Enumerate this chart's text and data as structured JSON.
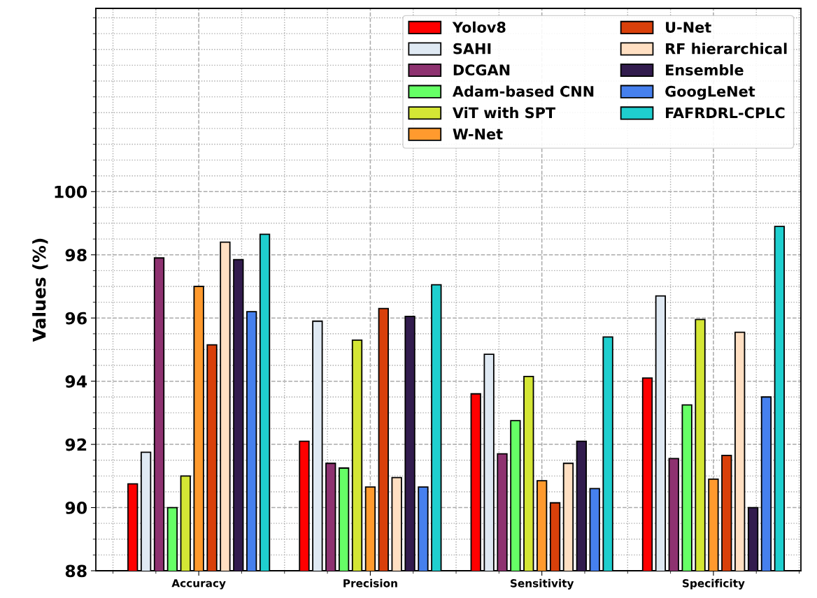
{
  "chart_data": {
    "type": "bar",
    "ylabel": "Values (%)",
    "categories": [
      "Accuracy",
      "Precision",
      "Sensitivity",
      "Specificity"
    ],
    "series": [
      {
        "name": "Yolov8",
        "color": "#ff0000",
        "values": [
          90.75,
          92.1,
          93.6,
          94.1
        ]
      },
      {
        "name": "SAHI",
        "color": "#dfe9f3",
        "values": [
          91.75,
          95.9,
          94.85,
          96.7
        ]
      },
      {
        "name": "DCGAN",
        "color": "#8e3270",
        "values": [
          97.9,
          91.4,
          91.7,
          91.55
        ]
      },
      {
        "name": "Adam-based CNN",
        "color": "#66ff66",
        "values": [
          90.0,
          91.25,
          92.75,
          93.25
        ]
      },
      {
        "name": "ViT with SPT",
        "color": "#d4e635",
        "values": [
          91.0,
          95.3,
          94.15,
          95.95
        ]
      },
      {
        "name": "W-Net",
        "color": "#ff9a2e",
        "values": [
          97.0,
          90.65,
          90.85,
          90.9
        ]
      },
      {
        "name": "U-Net",
        "color": "#d9400a",
        "values": [
          95.15,
          96.3,
          90.15,
          91.65
        ]
      },
      {
        "name": "RF hierarchical",
        "color": "#ffdfc2",
        "values": [
          98.4,
          90.95,
          91.4,
          95.55
        ]
      },
      {
        "name": "Ensemble",
        "color": "#321c4e",
        "values": [
          97.85,
          96.05,
          92.1,
          90.0
        ]
      },
      {
        "name": "GoogLeNet",
        "color": "#4680ee",
        "values": [
          96.2,
          90.65,
          90.6,
          93.5
        ]
      },
      {
        "name": "FAFRDRL-CPLC",
        "color": "#1fcfcf",
        "values": [
          98.65,
          97.05,
          95.4,
          98.9
        ]
      }
    ],
    "ylim": [
      88,
      105.8
    ],
    "yticks": [
      88,
      90,
      92,
      94,
      96,
      98,
      100
    ],
    "grid": true,
    "legend": "top right"
  }
}
